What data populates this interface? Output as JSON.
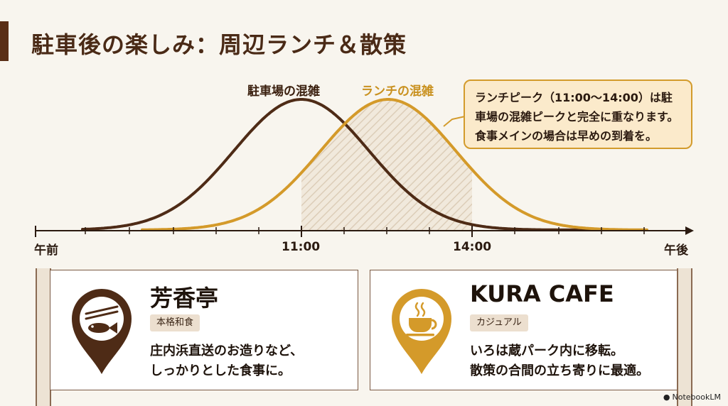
{
  "title": "駐車後の楽しみ：周辺ランチ＆散策",
  "colors": {
    "parking": "#4e2b16",
    "lunch": "#d49a2a",
    "accent_bar": "#5a2f16"
  },
  "chart_data": {
    "type": "line",
    "xlabel": "",
    "ylabel": "",
    "x_ticks": [
      "午前",
      "11:00",
      "14:00",
      "午後"
    ],
    "series": [
      {
        "name": "駐車場の混雑",
        "peak": "11:00",
        "color": "#4e2b16"
      },
      {
        "name": "ランチの混雑",
        "peak": "12:30",
        "color": "#d49a2a"
      }
    ],
    "highlight_range": [
      "11:00",
      "14:00"
    ],
    "callout": [
      "ランチピーク（11:00〜14:00）は駐",
      "車場の混雑ピークと完全に重なります。",
      "食事メインの場合は早めの到着を。"
    ]
  },
  "cards": [
    {
      "name": "芳香亭",
      "tag": "本格和食",
      "desc": [
        "庄内浜直送のお造りなど、",
        "しっかりとした食事に。"
      ],
      "icon": "fish-chopsticks-pin-icon"
    },
    {
      "name": "KURA CAFE",
      "tag": "カジュアル",
      "desc": [
        "いろは蔵パーク内に移転。",
        "散策の合間の立ち寄りに最適。"
      ],
      "icon": "coffee-cup-pin-icon"
    }
  ],
  "watermark": "NotebookLM"
}
